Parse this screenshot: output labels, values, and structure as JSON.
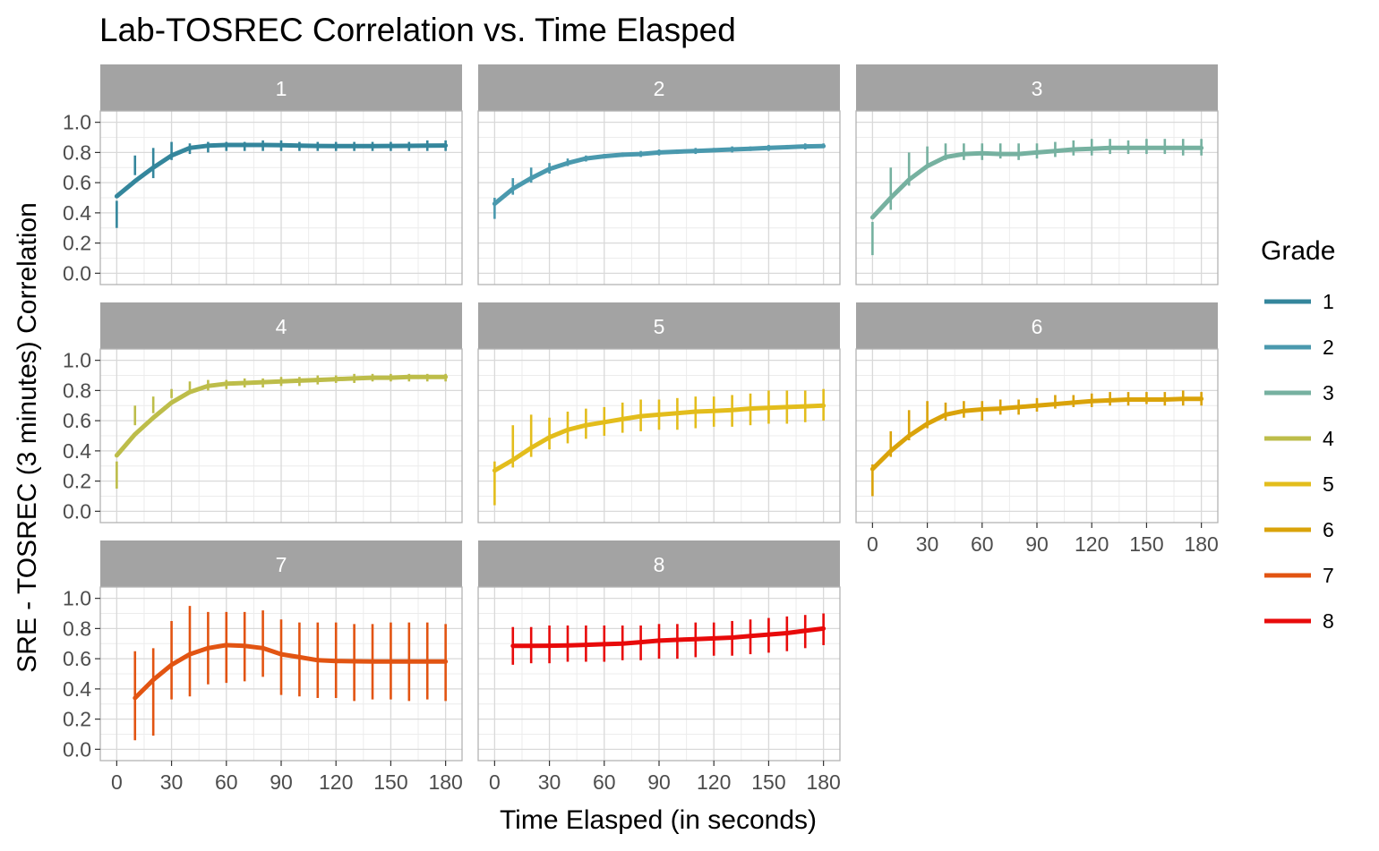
{
  "chart_data": {
    "type": "line",
    "title": "Lab-TOSREC Correlation vs. Time Elasped",
    "xlabel": "Time Elasped (in seconds)",
    "ylabel": "SRE - TOSREC (3 minutes) Correlation",
    "xlim": [
      0,
      180
    ],
    "ylim": [
      0,
      1
    ],
    "x_ticks": [
      0,
      30,
      60,
      90,
      120,
      150,
      180
    ],
    "y_ticks": [
      "0.0",
      "0.2",
      "0.4",
      "0.6",
      "0.8",
      "1.0"
    ],
    "grid": true,
    "legend_title": "Grade",
    "legend_position": "right",
    "facet_by": "Grade",
    "series": [
      {
        "name": "1",
        "color": "#34869C",
        "x": [
          0,
          10,
          20,
          30,
          40,
          50,
          60,
          70,
          80,
          90,
          100,
          110,
          120,
          130,
          140,
          150,
          160,
          170,
          180
        ],
        "y": [
          0.51,
          0.61,
          0.7,
          0.78,
          0.83,
          0.845,
          0.85,
          0.85,
          0.85,
          0.848,
          0.845,
          0.843,
          0.842,
          0.842,
          0.842,
          0.843,
          0.844,
          0.845,
          0.846
        ],
        "lower": [
          0.3,
          0.65,
          0.63,
          0.75,
          0.79,
          0.8,
          0.81,
          0.81,
          0.81,
          0.81,
          0.81,
          0.81,
          0.81,
          0.81,
          0.81,
          0.81,
          0.81,
          0.81,
          0.81
        ],
        "upper": [
          0.48,
          0.78,
          0.83,
          0.87,
          0.86,
          0.87,
          0.87,
          0.87,
          0.88,
          0.88,
          0.87,
          0.87,
          0.87,
          0.87,
          0.87,
          0.87,
          0.87,
          0.88,
          0.88
        ]
      },
      {
        "name": "2",
        "color": "#4A99AE",
        "x": [
          0,
          10,
          20,
          30,
          40,
          50,
          60,
          70,
          80,
          90,
          100,
          110,
          120,
          130,
          140,
          150,
          160,
          170,
          180
        ],
        "y": [
          0.46,
          0.56,
          0.63,
          0.69,
          0.73,
          0.76,
          0.775,
          0.785,
          0.79,
          0.8,
          0.805,
          0.81,
          0.815,
          0.82,
          0.825,
          0.83,
          0.835,
          0.84,
          0.842
        ],
        "lower": [
          0.36,
          0.52,
          0.6,
          0.66,
          0.71,
          0.74,
          0.76,
          0.77,
          0.77,
          0.78,
          0.79,
          0.79,
          0.8,
          0.8,
          0.81,
          0.81,
          0.82,
          0.82,
          0.83
        ],
        "upper": [
          0.5,
          0.63,
          0.7,
          0.73,
          0.76,
          0.78,
          0.79,
          0.8,
          0.81,
          0.82,
          0.82,
          0.83,
          0.83,
          0.84,
          0.84,
          0.85,
          0.85,
          0.86,
          0.86
        ]
      },
      {
        "name": "3",
        "color": "#76B1A0",
        "x": [
          0,
          10,
          20,
          30,
          40,
          50,
          60,
          70,
          80,
          90,
          100,
          110,
          120,
          130,
          140,
          150,
          160,
          170,
          180
        ],
        "y": [
          0.37,
          0.5,
          0.62,
          0.71,
          0.77,
          0.79,
          0.795,
          0.79,
          0.79,
          0.8,
          0.81,
          0.82,
          0.825,
          0.83,
          0.83,
          0.83,
          0.83,
          0.83,
          0.83
        ],
        "lower": [
          0.12,
          0.42,
          0.58,
          0.7,
          0.75,
          0.75,
          0.75,
          0.76,
          0.75,
          0.76,
          0.77,
          0.78,
          0.78,
          0.79,
          0.79,
          0.79,
          0.79,
          0.78,
          0.78
        ],
        "upper": [
          0.34,
          0.7,
          0.8,
          0.84,
          0.86,
          0.86,
          0.86,
          0.86,
          0.86,
          0.86,
          0.87,
          0.88,
          0.89,
          0.89,
          0.88,
          0.89,
          0.89,
          0.89,
          0.89
        ]
      },
      {
        "name": "4",
        "color": "#BDBD4A",
        "x": [
          0,
          10,
          20,
          30,
          40,
          50,
          60,
          70,
          80,
          90,
          100,
          110,
          120,
          130,
          140,
          150,
          160,
          170,
          180
        ],
        "y": [
          0.37,
          0.51,
          0.62,
          0.72,
          0.79,
          0.83,
          0.845,
          0.85,
          0.855,
          0.86,
          0.865,
          0.87,
          0.875,
          0.88,
          0.885,
          0.885,
          0.89,
          0.89,
          0.89
        ],
        "lower": [
          0.15,
          0.57,
          0.65,
          0.75,
          0.79,
          0.8,
          0.81,
          0.82,
          0.82,
          0.83,
          0.83,
          0.84,
          0.85,
          0.85,
          0.86,
          0.86,
          0.86,
          0.86,
          0.86
        ],
        "upper": [
          0.33,
          0.7,
          0.76,
          0.81,
          0.86,
          0.87,
          0.87,
          0.88,
          0.88,
          0.89,
          0.89,
          0.9,
          0.9,
          0.91,
          0.91,
          0.91,
          0.91,
          0.91,
          0.91
        ]
      },
      {
        "name": "5",
        "color": "#E3BD1C",
        "x": [
          0,
          10,
          20,
          30,
          40,
          50,
          60,
          70,
          80,
          90,
          100,
          110,
          120,
          130,
          140,
          150,
          160,
          170,
          180
        ],
        "y": [
          0.27,
          0.34,
          0.42,
          0.49,
          0.54,
          0.57,
          0.59,
          0.61,
          0.63,
          0.64,
          0.65,
          0.66,
          0.665,
          0.67,
          0.68,
          0.685,
          0.69,
          0.695,
          0.7
        ],
        "lower": [
          0.04,
          0.29,
          0.36,
          0.41,
          0.45,
          0.48,
          0.5,
          0.52,
          0.53,
          0.54,
          0.54,
          0.55,
          0.56,
          0.56,
          0.57,
          0.58,
          0.58,
          0.59,
          0.6
        ],
        "upper": [
          0.33,
          0.57,
          0.64,
          0.62,
          0.66,
          0.68,
          0.69,
          0.72,
          0.74,
          0.74,
          0.75,
          0.76,
          0.76,
          0.77,
          0.78,
          0.8,
          0.8,
          0.8,
          0.81
        ]
      },
      {
        "name": "6",
        "color": "#DAA30A",
        "x": [
          0,
          10,
          20,
          30,
          40,
          50,
          60,
          70,
          80,
          90,
          100,
          110,
          120,
          130,
          140,
          150,
          160,
          170,
          180
        ],
        "y": [
          0.28,
          0.4,
          0.5,
          0.58,
          0.64,
          0.665,
          0.675,
          0.68,
          0.69,
          0.7,
          0.71,
          0.72,
          0.73,
          0.735,
          0.74,
          0.74,
          0.74,
          0.745,
          0.745
        ],
        "lower": [
          0.1,
          0.36,
          0.47,
          0.55,
          0.6,
          0.62,
          0.6,
          0.64,
          0.64,
          0.66,
          0.68,
          0.69,
          0.69,
          0.7,
          0.7,
          0.71,
          0.7,
          0.7,
          0.7
        ],
        "upper": [
          0.31,
          0.53,
          0.67,
          0.73,
          0.72,
          0.73,
          0.73,
          0.74,
          0.74,
          0.75,
          0.77,
          0.77,
          0.78,
          0.79,
          0.79,
          0.79,
          0.79,
          0.8,
          0.79
        ]
      },
      {
        "name": "7",
        "color": "#E25412",
        "x": [
          10,
          20,
          30,
          40,
          50,
          60,
          70,
          80,
          90,
          100,
          110,
          120,
          130,
          140,
          150,
          160,
          170,
          180
        ],
        "y": [
          0.34,
          0.46,
          0.56,
          0.63,
          0.67,
          0.69,
          0.685,
          0.67,
          0.63,
          0.61,
          0.59,
          0.585,
          0.583,
          0.582,
          0.582,
          0.581,
          0.581,
          0.581
        ],
        "lower": [
          0.06,
          0.09,
          0.33,
          0.35,
          0.43,
          0.44,
          0.45,
          0.48,
          0.36,
          0.35,
          0.34,
          0.34,
          0.32,
          0.33,
          0.33,
          0.32,
          0.33,
          0.32
        ],
        "upper": [
          0.65,
          0.67,
          0.85,
          0.95,
          0.91,
          0.91,
          0.91,
          0.92,
          0.86,
          0.84,
          0.84,
          0.84,
          0.83,
          0.83,
          0.84,
          0.84,
          0.84,
          0.83
        ]
      },
      {
        "name": "8",
        "color": "#E80A0A",
        "x": [
          10,
          20,
          30,
          40,
          50,
          60,
          70,
          80,
          90,
          100,
          110,
          120,
          130,
          140,
          150,
          160,
          170,
          180
        ],
        "y": [
          0.685,
          0.685,
          0.686,
          0.688,
          0.692,
          0.696,
          0.7,
          0.71,
          0.72,
          0.725,
          0.73,
          0.735,
          0.74,
          0.75,
          0.76,
          0.77,
          0.785,
          0.8
        ],
        "lower": [
          0.56,
          0.57,
          0.57,
          0.58,
          0.58,
          0.58,
          0.59,
          0.59,
          0.6,
          0.6,
          0.61,
          0.62,
          0.62,
          0.63,
          0.64,
          0.65,
          0.67,
          0.69
        ],
        "upper": [
          0.81,
          0.81,
          0.82,
          0.82,
          0.82,
          0.82,
          0.82,
          0.82,
          0.83,
          0.83,
          0.84,
          0.84,
          0.85,
          0.86,
          0.87,
          0.88,
          0.89,
          0.9
        ]
      }
    ]
  }
}
